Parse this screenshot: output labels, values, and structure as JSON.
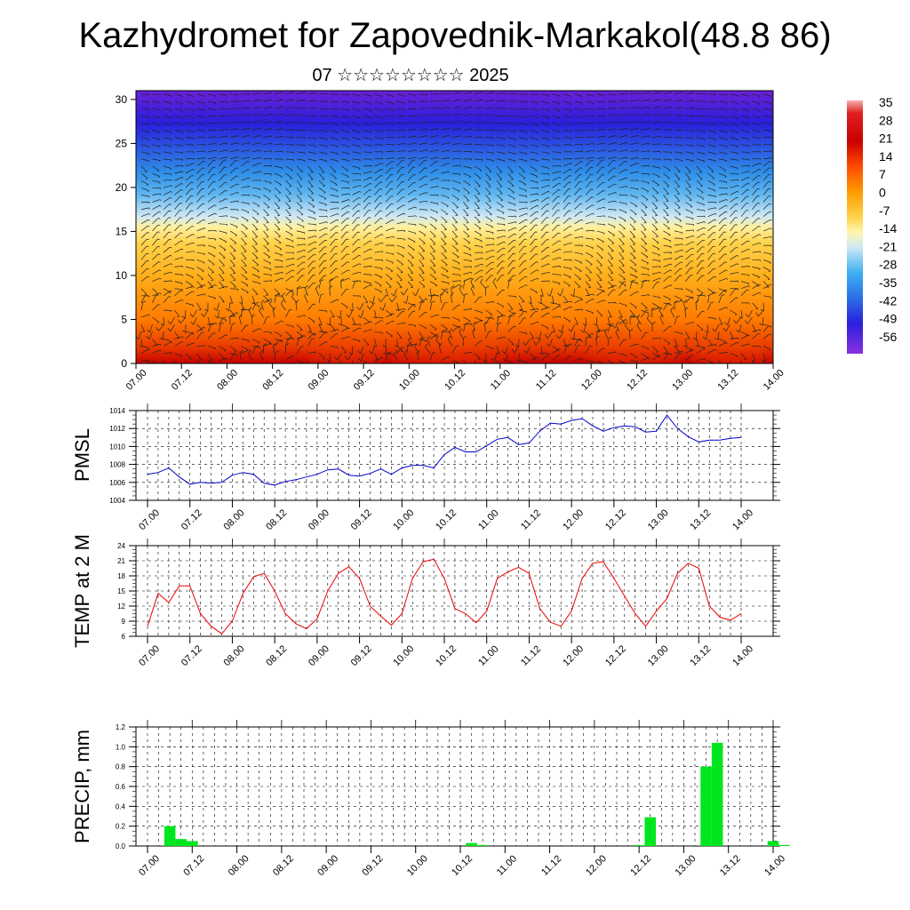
{
  "title": "Kazhydromet for Zapovednik-Markakol(48.8 86)",
  "subtitle": "07 ☆☆☆☆☆☆☆☆ 2025",
  "time_labels": [
    "07.00",
    "07.12",
    "08.00",
    "08.12",
    "09.00",
    "09.12",
    "10.00",
    "10.12",
    "11.00",
    "11.12",
    "12.00",
    "12.12",
    "13.00",
    "13.12",
    "14.00"
  ],
  "chart_data": [
    {
      "id": "cross-section",
      "type": "heatmap",
      "description_words": "temperature cross-section with wind barbs",
      "y_ticks": [
        "0",
        "5",
        "10",
        "15",
        "20",
        "25",
        "30"
      ],
      "ylim": [
        0,
        31
      ],
      "colorbar_labels": [
        "35",
        "28",
        "21",
        "14",
        "7",
        "0",
        "-7",
        "-14",
        "-21",
        "-28",
        "-35",
        "-42",
        "-49",
        "-56"
      ],
      "colorbar_range": [
        -60,
        38
      ],
      "colors": {
        "hot": "#c80000",
        "warm": "#ff7a00",
        "mild": "#ffd24a",
        "cool": "#9ed7f0",
        "cold": "#2f8fe8",
        "frozen": "#2a1fdc",
        "deep": "#6a20d8"
      }
    },
    {
      "id": "pmsl",
      "type": "line",
      "ylabel": "PMSL",
      "y_ticks": [
        "1004",
        "1006",
        "1008",
        "1010",
        "1012",
        "1014"
      ],
      "ylim": [
        1004,
        1014
      ],
      "color": "#0000cc",
      "values": [
        1006.9,
        1007.1,
        1007.6,
        1006.6,
        1005.8,
        1006.0,
        1005.9,
        1006.0,
        1006.8,
        1007.1,
        1006.9,
        1005.9,
        1005.7,
        1006.1,
        1006.3,
        1006.6,
        1006.9,
        1007.4,
        1007.5,
        1006.8,
        1006.7,
        1007.0,
        1007.5,
        1006.9,
        1007.6,
        1007.9,
        1007.9,
        1007.6,
        1009.1,
        1009.9,
        1009.4,
        1009.4,
        1010.1,
        1010.8,
        1011.0,
        1010.2,
        1010.4,
        1011.7,
        1012.6,
        1012.5,
        1012.9,
        1013.1,
        1012.3,
        1011.7,
        1012.1,
        1012.3,
        1012.2,
        1011.6,
        1011.7,
        1013.5,
        1012.0,
        1011.1,
        1010.5,
        1010.7,
        1010.7,
        1010.9,
        1011.0
      ]
    },
    {
      "id": "temp2m",
      "type": "line",
      "ylabel": "TEMP at 2 M",
      "y_ticks": [
        "6",
        "9",
        "12",
        "15",
        "18",
        "21",
        "24"
      ],
      "ylim": [
        6,
        24
      ],
      "color": "#ee0000",
      "values": [
        8.0,
        14.5,
        12.7,
        16.0,
        16.0,
        10.5,
        8.0,
        6.5,
        9.0,
        14.5,
        17.8,
        18.5,
        15.0,
        10.5,
        8.5,
        7.5,
        9.5,
        15.0,
        18.5,
        19.8,
        17.5,
        12.0,
        10.0,
        8.2,
        10.5,
        17.5,
        20.8,
        21.3,
        17.5,
        11.5,
        10.5,
        8.7,
        11.0,
        17.5,
        18.8,
        19.7,
        18.5,
        11.5,
        8.8,
        8.0,
        11.0,
        17.5,
        20.5,
        20.8,
        17.5,
        14.0,
        10.5,
        8.0,
        11.0,
        13.5,
        18.5,
        20.5,
        19.5,
        12.0,
        9.8,
        9.2,
        10.5
      ]
    },
    {
      "id": "precip",
      "type": "bar",
      "ylabel": "PRECIP, mm",
      "y_ticks": [
        "0.0",
        "0.2",
        "0.4",
        "0.6",
        "0.8",
        "1.0",
        "1.2"
      ],
      "ylim": [
        0,
        1.2
      ],
      "color": "#00e61e",
      "bars": [
        {
          "slot": 2,
          "value": 0.2
        },
        {
          "slot": 3,
          "value": 0.07
        },
        {
          "slot": 4,
          "value": 0.05
        },
        {
          "slot": 29,
          "value": 0.03
        },
        {
          "slot": 30,
          "value": 0.01
        },
        {
          "slot": 44,
          "value": 0.01
        },
        {
          "slot": 45,
          "value": 0.29
        },
        {
          "slot": 50,
          "value": 0.8
        },
        {
          "slot": 51,
          "value": 1.04
        },
        {
          "slot": 56,
          "value": 0.05
        },
        {
          "slot": 57,
          "value": 0.01
        }
      ]
    }
  ]
}
